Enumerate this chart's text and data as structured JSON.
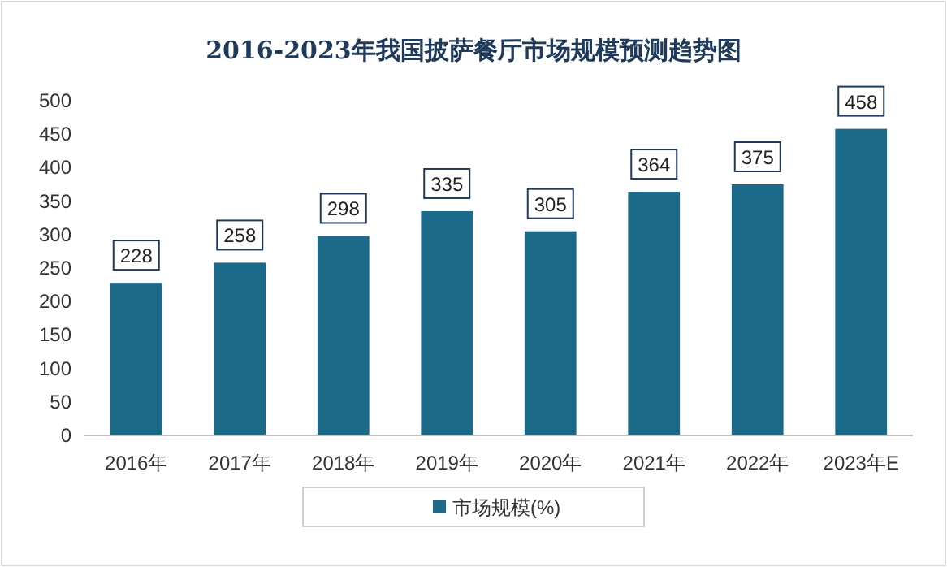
{
  "chart_data": {
    "type": "bar",
    "title": "2016-2023年我国披萨餐厅市场规模预测趋势图",
    "categories": [
      "2016年",
      "2017年",
      "2018年",
      "2019年",
      "2020年",
      "2021年",
      "2022年",
      "2023年E"
    ],
    "series": [
      {
        "name": "市场规模(%)",
        "color": "#1b6a8a",
        "values": [
          228,
          258,
          298,
          335,
          305,
          364,
          375,
          458
        ]
      }
    ],
    "ylim": [
      0,
      500
    ],
    "yticks": [
      0,
      50,
      100,
      150,
      200,
      250,
      300,
      350,
      400,
      450,
      500
    ],
    "data_labels": true,
    "legend": "bottom",
    "grid": false
  }
}
